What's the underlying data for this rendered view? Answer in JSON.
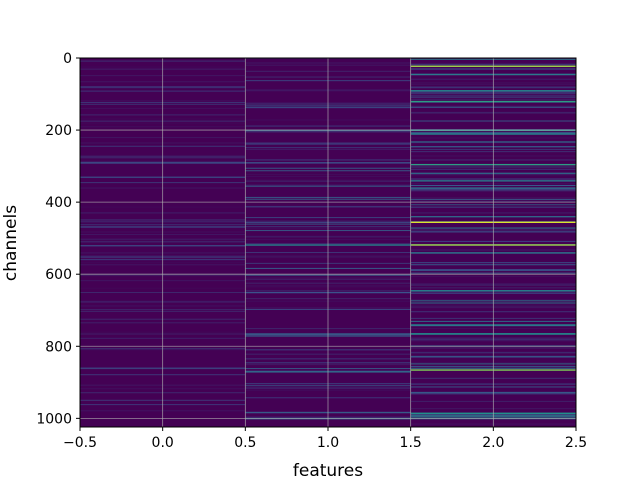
{
  "chart_data": {
    "type": "heatmap",
    "title": "",
    "xlabel": "features",
    "ylabel": "channels",
    "xlim": [
      -0.5,
      2.5
    ],
    "ylim": [
      1024,
      0
    ],
    "x_ticks": [
      -0.5,
      0.0,
      0.5,
      1.0,
      1.5,
      2.0,
      2.5
    ],
    "x_tick_labels": [
      "−0.5",
      "0.0",
      "0.5",
      "1.0",
      "1.5",
      "2.0",
      "2.5"
    ],
    "y_ticks": [
      0,
      200,
      400,
      600,
      800,
      1000
    ],
    "y_tick_labels": [
      "0",
      "200",
      "400",
      "600",
      "800",
      "1000"
    ],
    "grid": true,
    "colormap": "viridis",
    "background_value_color": "#440154",
    "columns": [
      0,
      1,
      2
    ],
    "rows": 1024,
    "highlighted_cells": [
      {
        "feature": 0,
        "channel": 290,
        "value": 0.25
      },
      {
        "feature": 0,
        "channel": 330,
        "value": 0.2
      },
      {
        "feature": 0,
        "channel": 520,
        "value": 0.2
      },
      {
        "feature": 0,
        "channel": 860,
        "value": 0.2
      },
      {
        "feature": 1,
        "channel": 200,
        "value": 0.3
      },
      {
        "feature": 1,
        "channel": 290,
        "value": 0.25
      },
      {
        "feature": 1,
        "channel": 455,
        "value": 0.2
      },
      {
        "feature": 1,
        "channel": 518,
        "value": 0.45
      },
      {
        "feature": 1,
        "channel": 650,
        "value": 0.25
      },
      {
        "feature": 1,
        "channel": 765,
        "value": 0.3
      },
      {
        "feature": 1,
        "channel": 870,
        "value": 0.35
      },
      {
        "feature": 1,
        "channel": 1000,
        "value": 0.3
      },
      {
        "feature": 2,
        "channel": 22,
        "value": 0.85
      },
      {
        "feature": 2,
        "channel": 45,
        "value": 0.4
      },
      {
        "feature": 2,
        "channel": 90,
        "value": 0.45
      },
      {
        "feature": 2,
        "channel": 120,
        "value": 0.55
      },
      {
        "feature": 2,
        "channel": 200,
        "value": 0.5
      },
      {
        "feature": 2,
        "channel": 210,
        "value": 0.45
      },
      {
        "feature": 2,
        "channel": 295,
        "value": 0.55
      },
      {
        "feature": 2,
        "channel": 340,
        "value": 0.4
      },
      {
        "feature": 2,
        "channel": 360,
        "value": 0.35
      },
      {
        "feature": 2,
        "channel": 455,
        "value": 0.95
      },
      {
        "feature": 2,
        "channel": 518,
        "value": 0.85
      },
      {
        "feature": 2,
        "channel": 540,
        "value": 0.4
      },
      {
        "feature": 2,
        "channel": 645,
        "value": 0.45
      },
      {
        "feature": 2,
        "channel": 740,
        "value": 0.45
      },
      {
        "feature": 2,
        "channel": 765,
        "value": 0.5
      },
      {
        "feature": 2,
        "channel": 865,
        "value": 0.8
      },
      {
        "feature": 2,
        "channel": 985,
        "value": 0.5
      },
      {
        "feature": 2,
        "channel": 995,
        "value": 0.4
      }
    ]
  }
}
